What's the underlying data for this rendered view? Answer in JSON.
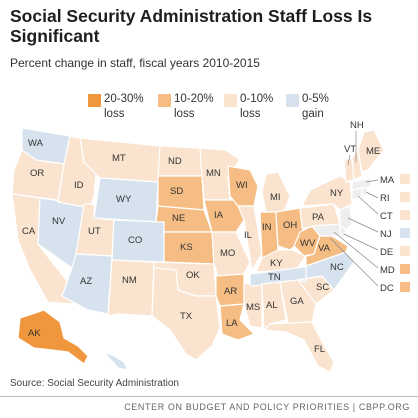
{
  "title": "Social Security Administration Staff Loss Is Significant",
  "subtitle": "Percent change in staff, fiscal years 2010-2015",
  "legend": [
    {
      "line1": "20-30%",
      "line2": "loss",
      "color": "#f0963c"
    },
    {
      "line1": "10-20%",
      "line2": "loss",
      "color": "#f5bd84"
    },
    {
      "line1": "0-10%",
      "line2": "loss",
      "color": "#fbe4cf"
    },
    {
      "line1": "0-5%",
      "line2": "gain",
      "color": "#d6e3ee"
    }
  ],
  "colors": {
    "c1": "#f0963c",
    "c2": "#f5bd84",
    "c3": "#fbe4cf",
    "g": "#d6e3ee",
    "border": "#ffffff"
  },
  "states": {
    "WA": "g",
    "OR": "c3",
    "CA": "c3",
    "NV": "g",
    "ID": "c3",
    "MT": "c3",
    "WY": "g",
    "UT": "c3",
    "CO": "g",
    "AZ": "g",
    "NM": "c3",
    "ND": "c3",
    "SD": "c2",
    "NE": "c2",
    "KS": "c2",
    "OK": "c3",
    "TX": "c3",
    "MN": "c3",
    "IA": "c2",
    "MO": "c3",
    "AR": "c2",
    "LA": "c2",
    "WI": "c2",
    "IL": "c3",
    "MS": "c3",
    "MI": "c3",
    "IN": "c2",
    "OH": "c2",
    "KY": "c3",
    "TN": "g",
    "AL": "c3",
    "GA": "c3",
    "FL": "c3",
    "SC": "c3",
    "NC": "g",
    "WV": "c2",
    "VA": "c2",
    "PA": "c3",
    "NY": "c3",
    "VT": "c3",
    "ME": "c3",
    "NH": "c3",
    "AK": "c1",
    "HI": "g"
  },
  "northeast": [
    {
      "label": "MA",
      "cat": "c3"
    },
    {
      "label": "RI",
      "cat": "c3"
    },
    {
      "label": "CT",
      "cat": "c3"
    },
    {
      "label": "NJ",
      "cat": "g"
    },
    {
      "label": "DE",
      "cat": "c3"
    },
    {
      "label": "MD",
      "cat": "c2"
    },
    {
      "label": "DC",
      "cat": "c2"
    }
  ],
  "source": "Source: Social Security Administration",
  "footer": "CENTER ON BUDGET AND POLICY PRIORITIES | CBPP.ORG"
}
